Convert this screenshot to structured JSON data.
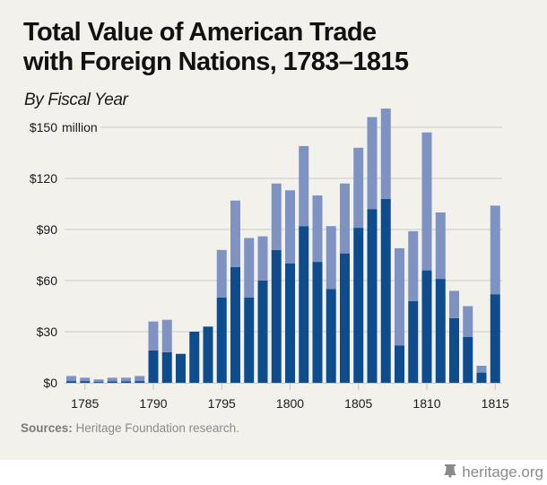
{
  "title_line1": "Total Value of American Trade",
  "title_line2": "with Foreign Nations, 1783–1815",
  "subtitle": "By Fiscal Year",
  "source_label": "Sources:",
  "source_text": " Heritage Foundation research.",
  "logo_text": "heritage.org",
  "logo_icon": "liberty-bell-icon",
  "colors": {
    "background": "#f3f1ec",
    "dark": "#0f4c8e",
    "light": "#7e93c2",
    "grid": "#d6d2ca"
  },
  "chart_data": {
    "type": "bar",
    "stacked": true,
    "title": "Total Value of American Trade with Foreign Nations, 1783–1815",
    "subtitle": "By Fiscal Year",
    "xlabel": "",
    "ylabel": "",
    "y_unit_label": "million",
    "ylim": [
      0,
      150
    ],
    "yticks": [
      0,
      30,
      60,
      90,
      120,
      150
    ],
    "ytick_labels": [
      "$0",
      "$30",
      "$60",
      "$90",
      "$120",
      "$150"
    ],
    "xticks": [
      1785,
      1790,
      1795,
      1800,
      1805,
      1810,
      1815
    ],
    "grid": true,
    "legend": "none",
    "categories": [
      1784,
      1785,
      1786,
      1787,
      1788,
      1789,
      1790,
      1791,
      1792,
      1793,
      1794,
      1795,
      1796,
      1797,
      1798,
      1799,
      1800,
      1801,
      1802,
      1803,
      1804,
      1805,
      1806,
      1807,
      1808,
      1809,
      1810,
      1811,
      1812,
      1813,
      1814,
      1815
    ],
    "series": [
      {
        "name": "Dark segment (bottom)",
        "color": "#0f4c8e",
        "values": [
          1,
          1,
          0.5,
          0.8,
          0.8,
          1,
          19,
          18,
          17,
          30,
          33,
          50,
          68,
          50,
          60,
          78,
          70,
          92,
          71,
          55,
          76,
          91,
          102,
          108,
          22,
          48,
          66,
          61,
          38,
          27,
          6,
          52
        ]
      },
      {
        "name": "Light segment (top)",
        "color": "#7e93c2",
        "values": [
          3,
          2,
          1.5,
          2.2,
          2.2,
          3,
          17,
          19,
          0,
          0,
          0,
          28,
          39,
          35,
          26,
          39,
          43,
          47,
          39,
          37,
          41,
          47,
          54,
          53,
          57,
          41,
          81,
          39,
          16,
          18,
          4,
          52
        ]
      }
    ],
    "totals": [
      4,
      3,
      2,
      3,
      3,
      4,
      36,
      37,
      17,
      30,
      33,
      78,
      107,
      85,
      86,
      117,
      113,
      139,
      110,
      92,
      117,
      138,
      156,
      161,
      79,
      89,
      147,
      100,
      54,
      45,
      10,
      104
    ]
  }
}
